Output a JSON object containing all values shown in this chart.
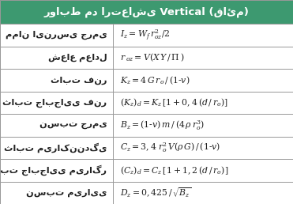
{
  "title_persian": "روابط مد ارتعاشی Vertical (قائم)",
  "header_bg": "#3d9970",
  "header_text_color": "#ffffff",
  "border_color": "#999999",
  "outer_border_color": "#666666",
  "label_col_ratio": 0.385,
  "rows": [
    {
      "label": "ممان اینرسی جرمی",
      "formula": "$I_z = W_f\\,r_{oz}^2/2$"
    },
    {
      "label": "شعاع معادل",
      "formula": "$r\\,_{oz} = V(X\\,Y\\,/\\,\\Pi\\,)$"
    },
    {
      "label": "ثابت فنر",
      "formula": "$K_z = 4\\,G\\,r_o\\,/\\,(1\\text{-}v)$"
    },
    {
      "label": "ثابت جابجایی فنر",
      "formula": "$(K_z)_d = K_z\\,[1 + 0,4\\,(d\\,/\\,r_o)]$"
    },
    {
      "label": "نسبت جرمی",
      "formula": "$B_z = (1\\text{-}v)\\,m\\,/\\,(4\\,\\rho\\,r_o^3)$"
    },
    {
      "label": "ثابت میراکنندگی",
      "formula": "$C_z = 3,4\\;r_o^2\\,V(\\rho\\,G)\\,/\\,(1\\text{-}v)$"
    },
    {
      "label": "ثابت جابجایی میراگر",
      "formula": "$(C_z)_d = C_z\\,[1 + 1,2\\,(d\\,/\\,r_o)]$"
    },
    {
      "label": "نسبت میرایی",
      "formula": "$D_z = 0,425\\,/\\,\\sqrt{B_z}$"
    }
  ],
  "figsize": [
    3.71,
    2.58
  ],
  "dpi": 100
}
